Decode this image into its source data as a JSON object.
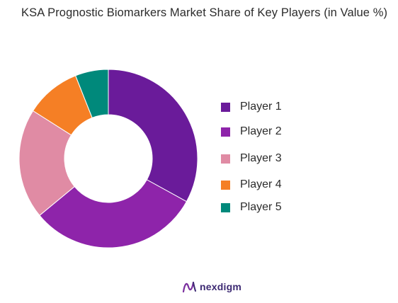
{
  "chart_data": {
    "type": "pie",
    "style": "donut",
    "title": "KSA Prognostic Biomarkers Market Share of Key Players (in Value %)",
    "categories": [
      "Player 1",
      "Player 2",
      "Player 3",
      "Player 4",
      "Player 5"
    ],
    "values": [
      33,
      31,
      20,
      10,
      6
    ],
    "colors": [
      "#6a1b9a",
      "#8e24aa",
      "#e08ba4",
      "#f57f25",
      "#00897b"
    ],
    "legend_position": "right"
  },
  "logo": {
    "text": "nexdigm",
    "icon": "nexdigm-logo-icon",
    "color": "#3d2a73"
  }
}
